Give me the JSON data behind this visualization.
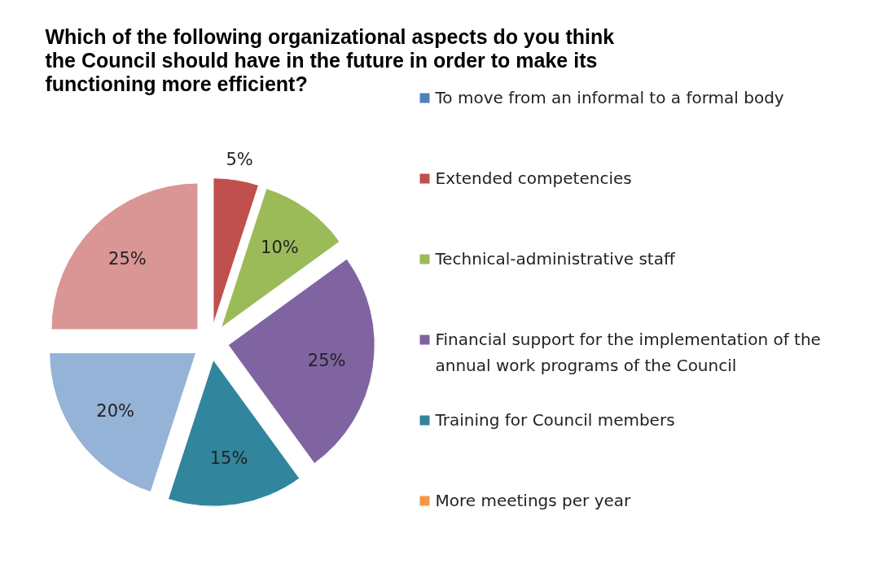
{
  "chart_data": {
    "type": "pie",
    "title": "Which of the following organizational aspects do you think the Council should have in the future in order to make its functioning more efficient?",
    "categories": [
      "To move from an informal to a formal body",
      "Extended competencies",
      "Technical-administrative staff",
      "Financial support for the implementation of the annual work programs of the Council",
      "Training for Council members",
      "More meetings per year",
      null,
      null
    ],
    "values": [
      0,
      5,
      10,
      25,
      15,
      0,
      20,
      25
    ],
    "colors": [
      "#4f81bd",
      "#c0504d",
      "#9bbb59",
      "#8064a2",
      "#31859c",
      "#f79646",
      "#95b3d7",
      "#d99694"
    ],
    "value_labels": [
      null,
      "5%",
      "10%",
      "25%",
      "15%",
      null,
      "20%",
      "25%"
    ],
    "legend": "right"
  }
}
